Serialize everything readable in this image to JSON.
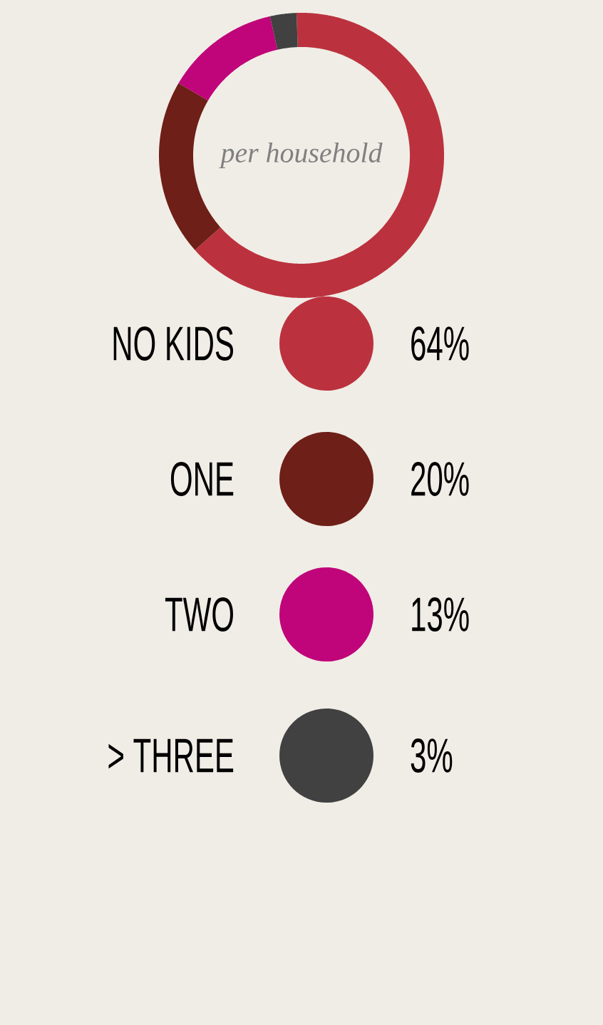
{
  "chart_data": {
    "type": "donut",
    "subtitle": "per household",
    "categories": [
      "NO KIDS",
      "ONE",
      "TWO",
      "> THREE"
    ],
    "values": [
      64,
      20,
      13,
      3
    ],
    "value_labels": [
      "64%",
      "20%",
      "13%",
      "3%"
    ],
    "colors": [
      "#bb323e",
      "#6e1f17",
      "#c0047a",
      "#414141"
    ],
    "legend": "bottom"
  }
}
